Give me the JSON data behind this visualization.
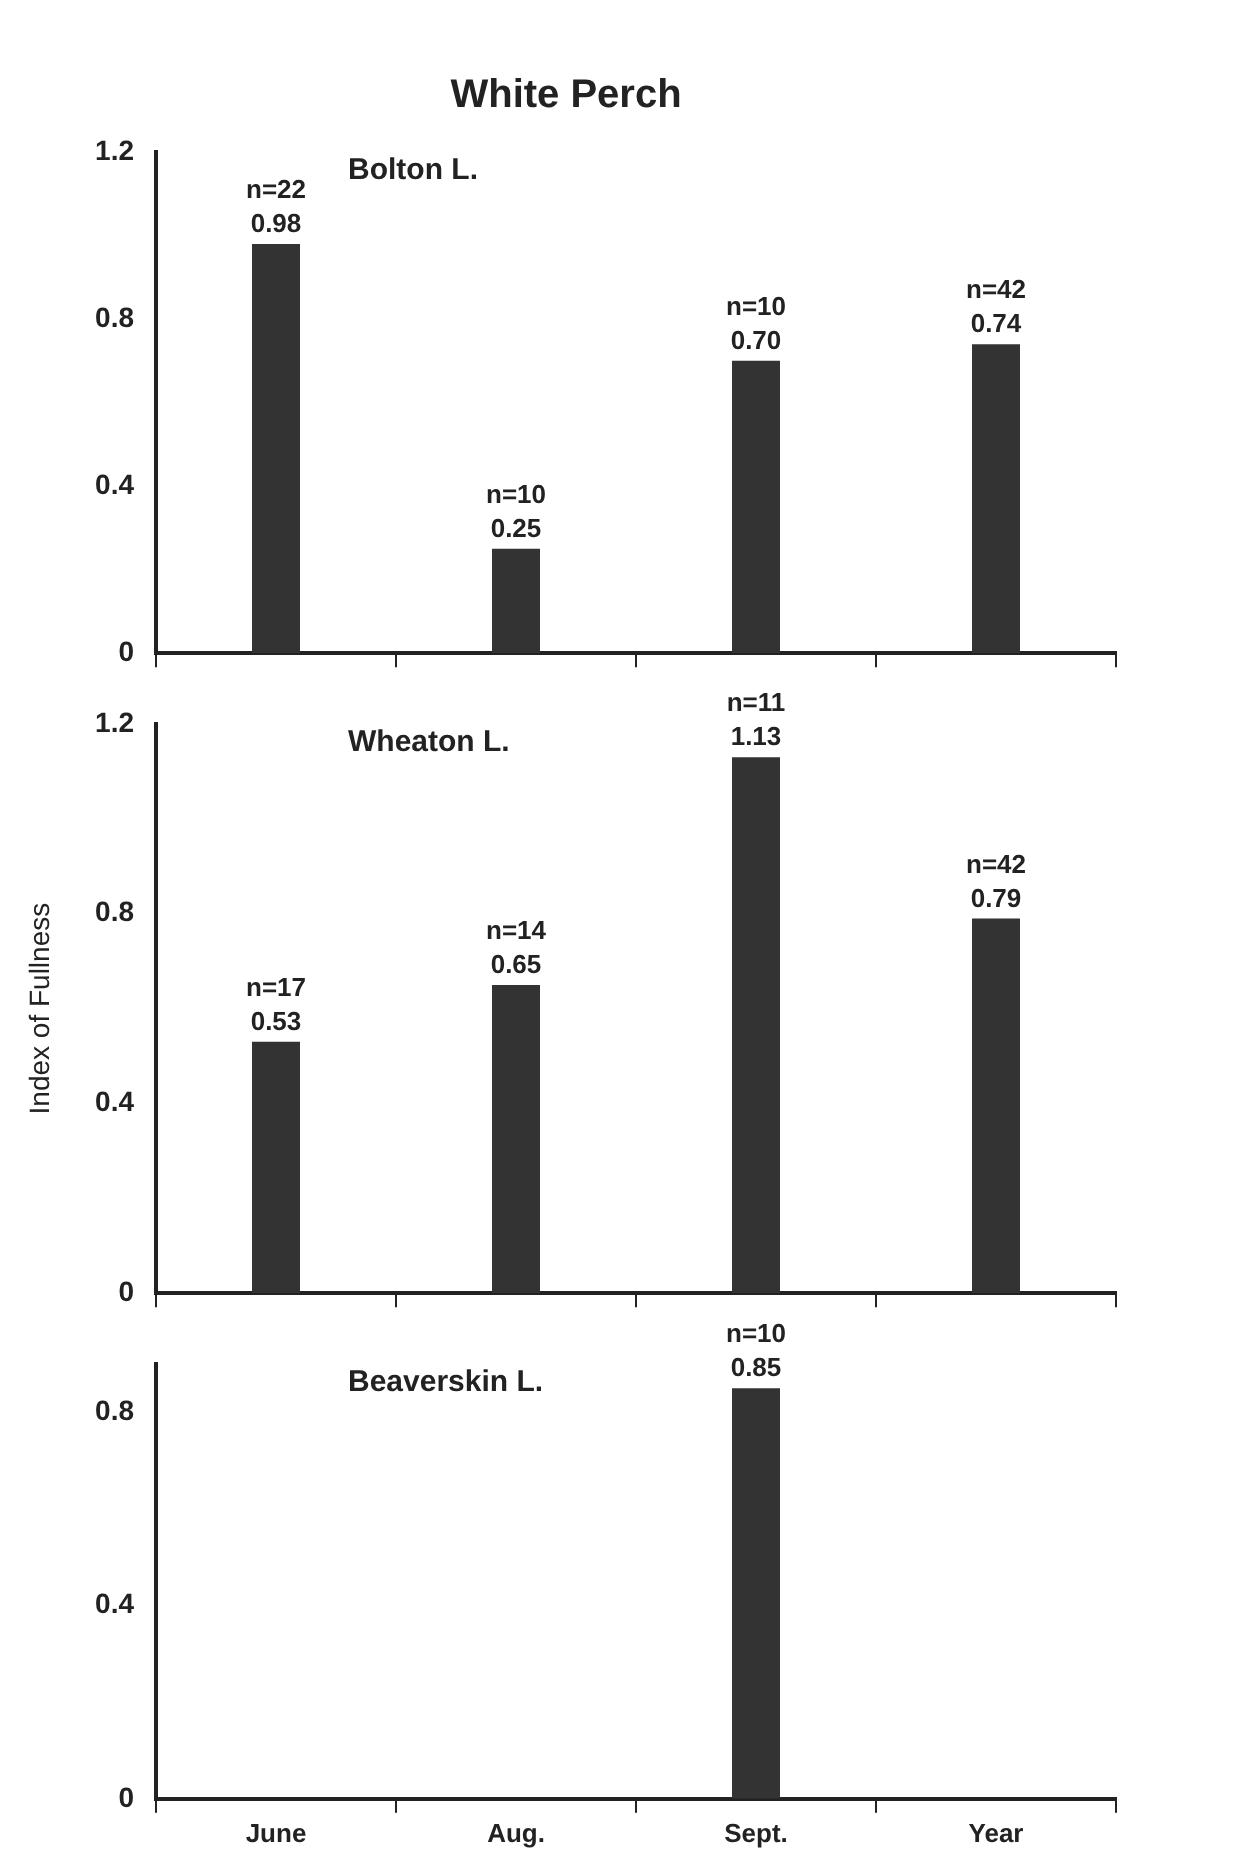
{
  "chart_data": [
    {
      "type": "bar",
      "title": "White Perch",
      "subtitle": "Bolton L.",
      "categories": [
        "June",
        "Aug.",
        "Sept.",
        "Year"
      ],
      "values": [
        0.98,
        0.25,
        0.7,
        0.74
      ],
      "value_labels": [
        "0.98",
        "0.25",
        "0.70",
        "0.74"
      ],
      "color": "#333333",
      "ylim": [
        0,
        1.2
      ],
      "yticks": [
        0,
        0.4,
        0.8,
        1.2
      ],
      "tick_labels": "y",
      "annotations": [
        {
          "text": "n=22",
          "x": "June",
          "y": 0.98
        },
        {
          "text": "n=10",
          "x": "Aug.",
          "y": 0.25
        },
        {
          "text": "n=10",
          "x": "Sept.",
          "y": 0.7
        },
        {
          "text": "n=42",
          "x": "Year",
          "y": 0.74
        }
      ]
    },
    {
      "type": "bar",
      "subtitle": "Wheaton L.",
      "ylabel": "Index of Fullness",
      "categories": [
        "June",
        "Aug.",
        "Sept.",
        "Year"
      ],
      "values": [
        0.53,
        0.65,
        1.13,
        0.79
      ],
      "value_labels": [
        "0.53",
        "0.65",
        "1.13",
        "0.79"
      ],
      "color": "#333333",
      "ylim": [
        0,
        1.2
      ],
      "yticks": [
        0,
        0.4,
        0.8,
        1.2
      ],
      "tick_labels": "y",
      "annotations": [
        {
          "text": "n=17",
          "x": "June",
          "y": 0.53
        },
        {
          "text": "n=14",
          "x": "Aug.",
          "y": 0.65
        },
        {
          "text": "n=11",
          "x": "Sept.",
          "y": 1.13
        },
        {
          "text": "n=42",
          "x": "Year",
          "y": 0.79
        }
      ]
    },
    {
      "type": "bar",
      "subtitle": "Beaverskin L.",
      "categories": [
        "June",
        "Aug.",
        "Sept.",
        "Year"
      ],
      "values": [
        null,
        null,
        0.85,
        null
      ],
      "value_labels": [
        null,
        null,
        "0.85",
        null
      ],
      "color": "#333333",
      "ylim": [
        0,
        0.9
      ],
      "yticks": [
        0,
        0.4,
        0.8
      ],
      "annotations": [
        {
          "text": "n=10",
          "x": "Sept.",
          "y": 0.85
        }
      ]
    }
  ]
}
